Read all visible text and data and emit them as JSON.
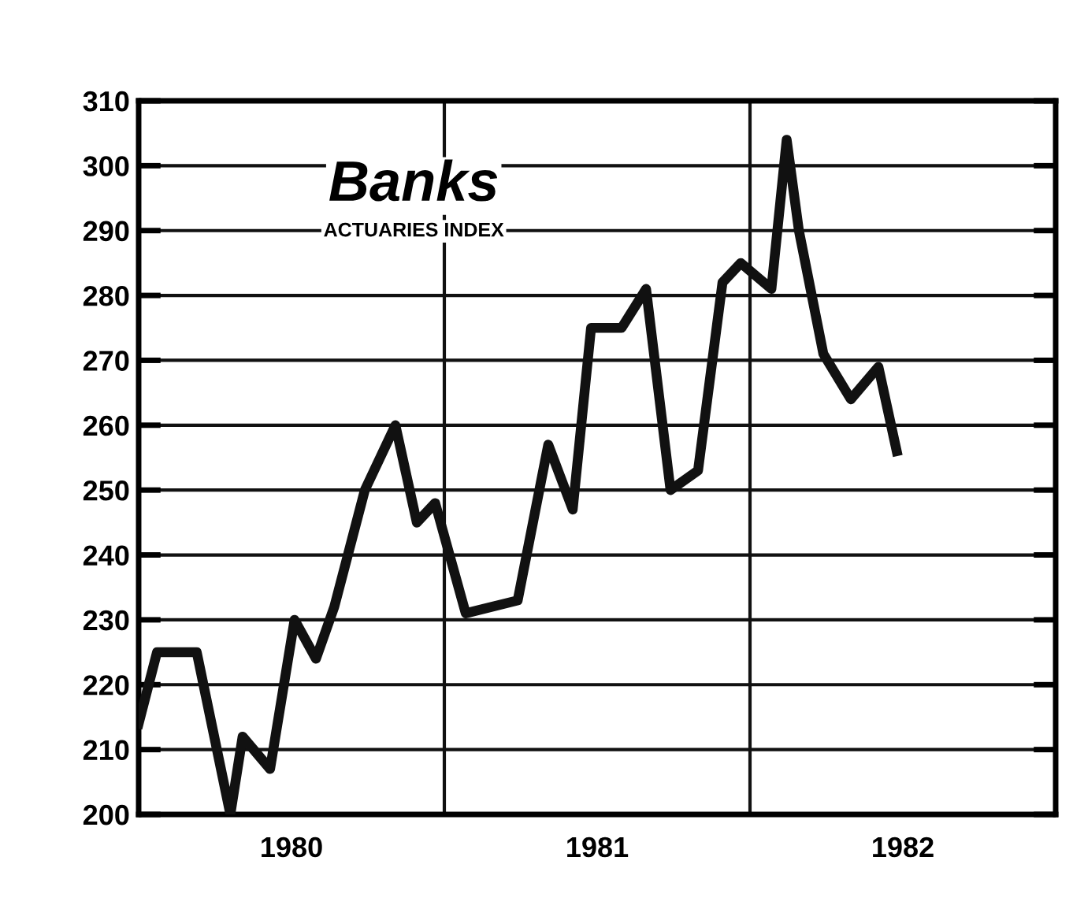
{
  "chart_data": {
    "type": "line",
    "title": "Banks",
    "subtitle": "ACTUARIES INDEX",
    "x": [
      1980.0,
      1980.06,
      1980.19,
      1980.3,
      1980.34,
      1980.43,
      1980.51,
      1980.58,
      1980.64,
      1980.74,
      1980.84,
      1980.91,
      1980.97,
      1981.07,
      1981.24,
      1981.34,
      1981.42,
      1981.48,
      1981.58,
      1981.66,
      1981.74,
      1981.83,
      1981.91,
      1981.97,
      1982.07,
      1982.12,
      1982.16,
      1982.24,
      1982.33,
      1982.42,
      1982.48
    ],
    "series": [
      {
        "color": "#111111",
        "values": [
          214,
          225,
          225,
          200,
          212,
          207,
          230,
          224,
          232,
          250,
          260,
          245,
          248,
          231,
          233,
          257,
          247,
          275,
          275,
          281,
          250,
          253,
          282,
          285,
          281,
          304,
          290,
          271,
          264,
          269,
          256
        ]
      }
    ],
    "xlim": [
      1980,
      1983
    ],
    "xticks": [
      {
        "value": 1980.5,
        "label": "1980"
      },
      {
        "value": 1981.5,
        "label": "1981"
      },
      {
        "value": 1982.5,
        "label": "1982"
      }
    ],
    "ylim": [
      200,
      310
    ],
    "yticks": [
      200,
      210,
      220,
      230,
      240,
      250,
      260,
      270,
      280,
      290,
      300,
      310
    ],
    "grid": "y",
    "marker": "none",
    "line_style": "solid",
    "legend": false,
    "ref_lines": [
      {
        "axis": "x",
        "value": 1981,
        "label": null
      },
      {
        "axis": "x",
        "value": 1982,
        "label": null
      }
    ]
  }
}
